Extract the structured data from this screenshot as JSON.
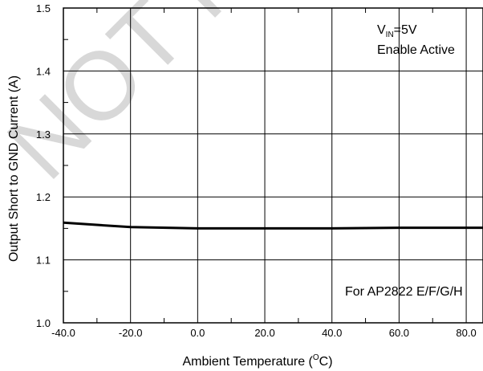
{
  "chart_data": {
    "type": "line",
    "xlabel_prefix": "Ambient Temperature (",
    "xlabel_sup": "O",
    "xlabel_suffix": "C)",
    "ylabel": "Output Short to GND Current (A)",
    "xlim": [
      -40,
      85
    ],
    "ylim": [
      1.0,
      1.5
    ],
    "x_ticks": [
      -40,
      -20,
      0,
      20,
      40,
      60,
      80
    ],
    "x_tick_labels": [
      "-40.0",
      "-20.0",
      "0.0",
      "20.0",
      "40.0",
      "60.0",
      "80.0"
    ],
    "y_ticks": [
      1.0,
      1.1,
      1.2,
      1.3,
      1.4,
      1.5
    ],
    "y_tick_labels": [
      "1.0",
      "1.1",
      "1.2",
      "1.3",
      "1.4",
      "1.5"
    ],
    "grid": true,
    "series": [
      {
        "x": [
          -40,
          -20,
          0,
          20,
          40,
          60,
          85
        ],
        "y": [
          1.159,
          1.152,
          1.15,
          1.15,
          1.15,
          1.151,
          1.151
        ]
      }
    ],
    "annotations": {
      "vin_main": "V",
      "vin_sub": "IN",
      "vin_value": "=5V",
      "enable": "Enable Active",
      "device": "For AP2822 E/F/G/H"
    },
    "watermark_text": "NOT FOR NEW DESIGN"
  }
}
